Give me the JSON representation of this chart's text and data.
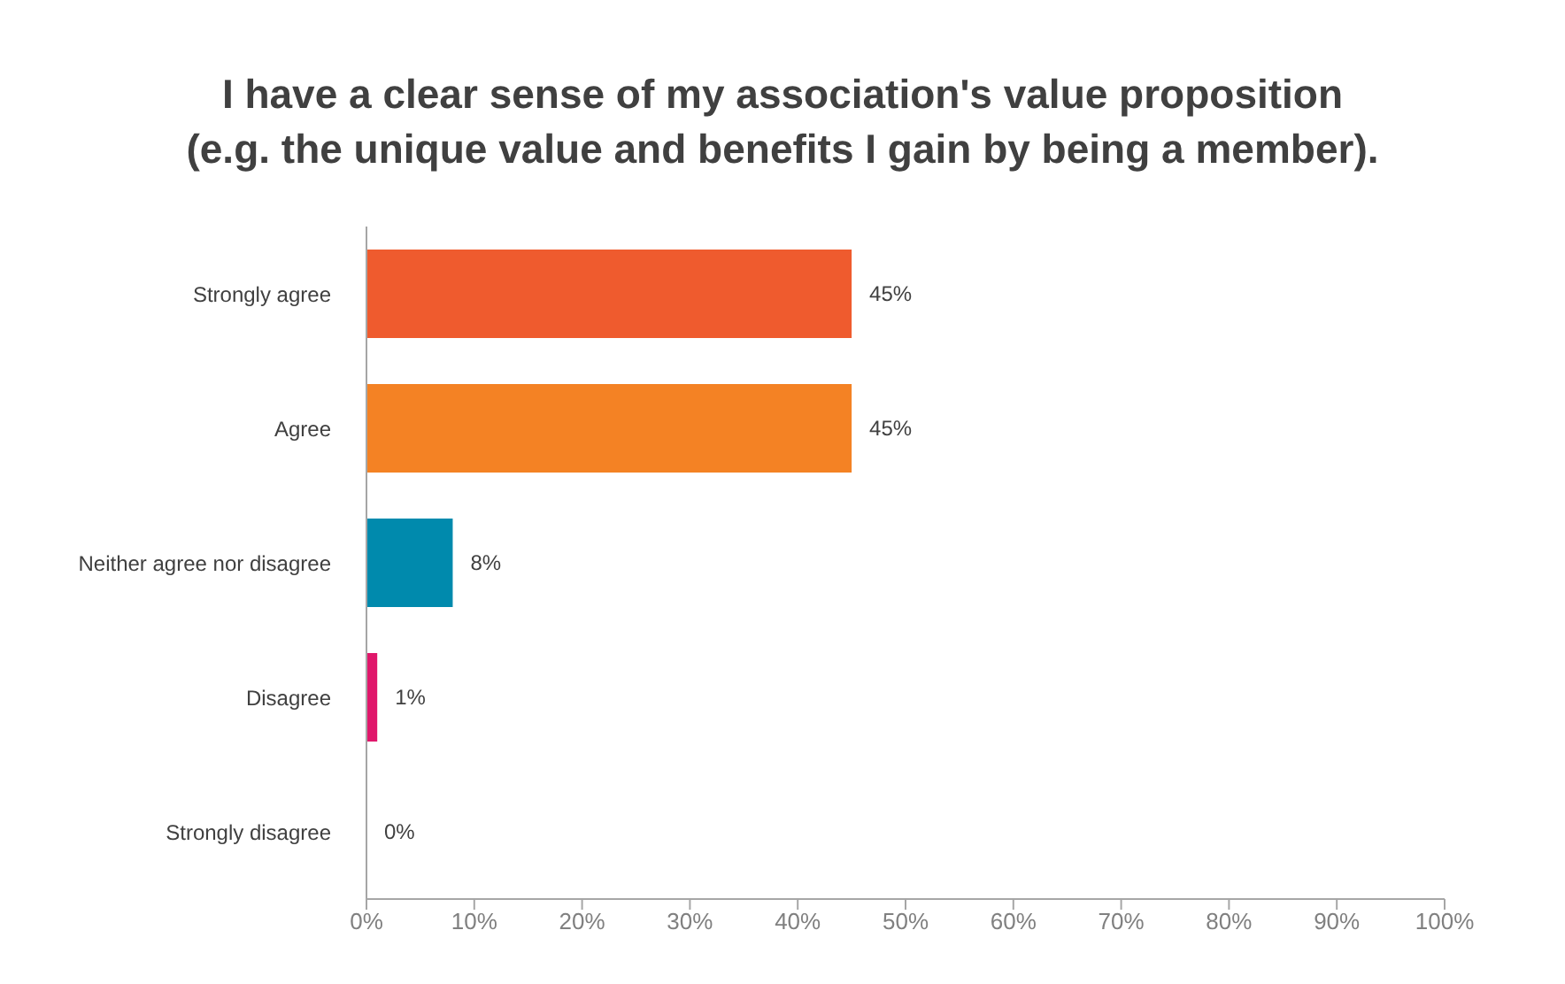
{
  "chart_data": {
    "type": "bar",
    "orientation": "horizontal",
    "title": "I have a clear sense of my association's value proposition\n(e.g. the unique value and benefits I gain by being a member).",
    "categories": [
      "Strongly agree",
      "Agree",
      "Neither agree nor disagree",
      "Disagree",
      "Strongly disagree"
    ],
    "values": [
      45,
      45,
      8,
      1,
      0
    ],
    "colors": [
      "#ef5b2e",
      "#f48224",
      "#008aad",
      "#e0176b",
      "#999999"
    ],
    "value_labels": [
      "45%",
      "45%",
      "8%",
      "1%",
      "0%"
    ],
    "xlim": [
      0,
      100
    ],
    "xticks": [
      {
        "value": 0,
        "label": "0%"
      },
      {
        "value": 10,
        "label": "10%"
      },
      {
        "value": 20,
        "label": "20%"
      },
      {
        "value": 30,
        "label": "30%"
      },
      {
        "value": 40,
        "label": "40%"
      },
      {
        "value": 50,
        "label": "50%"
      },
      {
        "value": 60,
        "label": "60%"
      },
      {
        "value": 70,
        "label": "70%"
      },
      {
        "value": 80,
        "label": "80%"
      },
      {
        "value": 90,
        "label": "90%"
      },
      {
        "value": 100,
        "label": "100%"
      }
    ],
    "grid": false,
    "legend": false
  }
}
